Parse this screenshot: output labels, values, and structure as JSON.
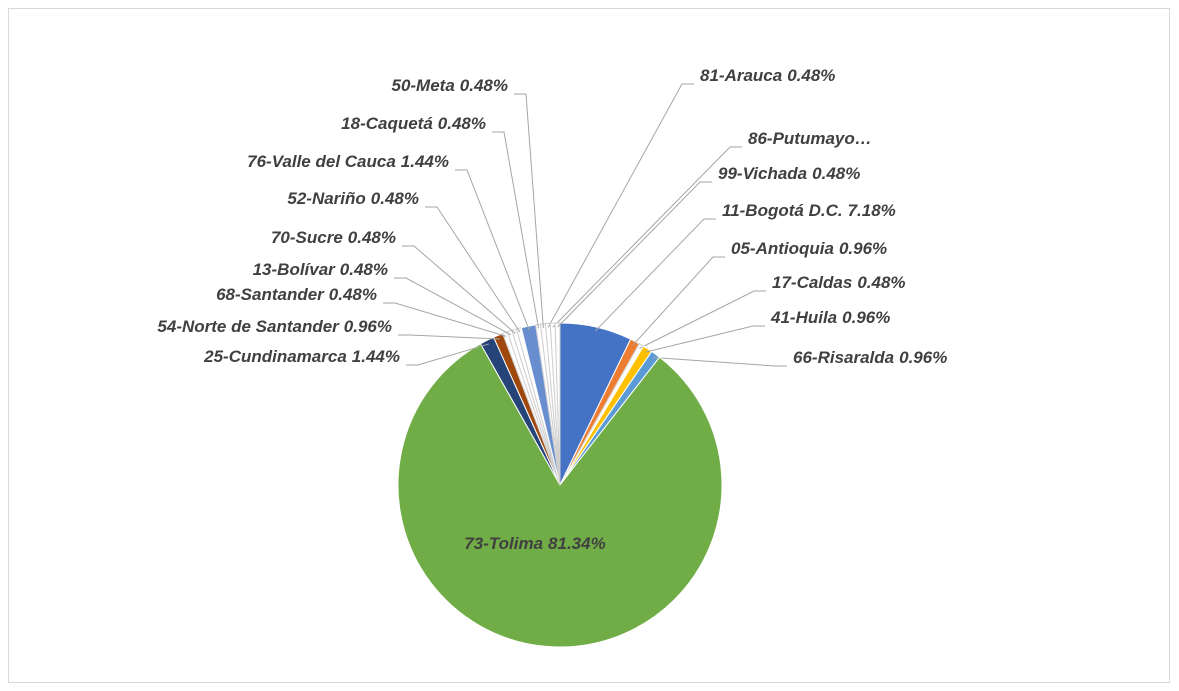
{
  "chart_data": {
    "type": "pie",
    "categories": [
      "11-Bogotá D.C.",
      "05-Antioquia",
      "17-Caldas",
      "41-Huila",
      "66-Risaralda",
      "73-Tolima",
      "25-Cundinamarca",
      "54-Norte de Santander",
      "68-Santander",
      "13-Bolívar",
      "70-Sucre",
      "52-Nariño",
      "76-Valle del Cauca",
      "18-Caquetá",
      "50-Meta",
      "81-Arauca",
      "86-Putumayo…",
      "99-Vichada"
    ],
    "values": [
      7.18,
      0.96,
      0.48,
      0.96,
      0.96,
      81.34,
      1.44,
      0.96,
      0.48,
      0.48,
      0.48,
      0.48,
      1.44,
      0.48,
      0.48,
      0.48,
      0.48,
      0.48
    ],
    "value_labels": [
      "7.18%",
      "0.96%",
      "0.48%",
      "0.96%",
      "0.96%",
      "81.34%",
      "1.44%",
      "0.96%",
      "0.48%",
      "0.48%",
      "0.48%",
      "0.48%",
      "1.44%",
      "0.48%",
      "0.48%",
      "0.48%",
      null,
      "0.48%"
    ],
    "colors": [
      "#4472c4",
      "#ed7d31",
      "#ffffff",
      "#ffc000",
      "#5b9bd5",
      "#70ad47",
      "#264478",
      "#9e480e",
      "#ffffff",
      "#ffffff",
      "#ffffff",
      "#ffffff",
      "#698ed0",
      "#ffffff",
      "#ffffff",
      "#ffffff",
      "#ffffff",
      "#ffffff"
    ]
  }
}
